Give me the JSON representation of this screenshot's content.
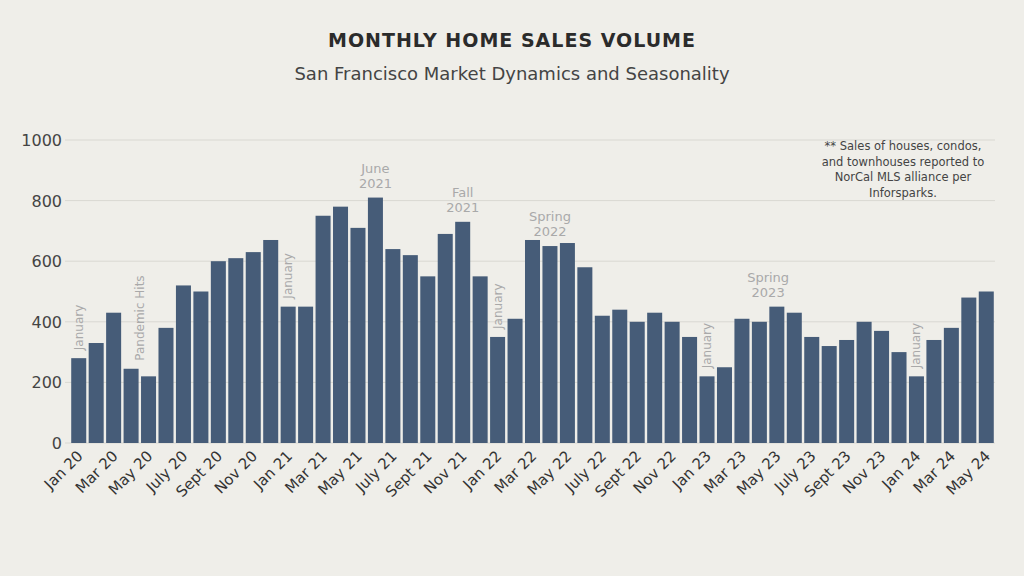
{
  "chart_data": {
    "type": "bar",
    "title": "MONTHLY HOME SALES VOLUME",
    "subtitle": "San Francisco Market Dynamics and Seasonality",
    "categories": [
      "Jan 20",
      null,
      "Mar 20",
      null,
      "May 20",
      null,
      "July 20",
      null,
      "Sept 20",
      null,
      "Nov 20",
      null,
      "Jan 21",
      null,
      "Mar 21",
      null,
      "May 21",
      null,
      "July 21",
      null,
      "Sept 21",
      null,
      "Nov 21",
      null,
      "Jan 22",
      null,
      "Mar 22",
      null,
      "May 22",
      null,
      "July 22",
      null,
      "Sept 22",
      null,
      "Nov 22",
      null,
      "Jan 23",
      null,
      "Mar 23",
      null,
      "May 23",
      null,
      "July 23",
      null,
      "Sept 23",
      null,
      "Nov 23",
      null,
      "Jan 24",
      null,
      "Mar 24",
      null,
      "May 24"
    ],
    "values": [
      280,
      330,
      430,
      245,
      220,
      380,
      520,
      500,
      600,
      610,
      630,
      670,
      450,
      450,
      750,
      780,
      710,
      810,
      640,
      620,
      550,
      690,
      730,
      550,
      350,
      410,
      670,
      650,
      660,
      580,
      420,
      440,
      400,
      430,
      400,
      350,
      220,
      250,
      410,
      400,
      450,
      430,
      350,
      320,
      340,
      400,
      370,
      300,
      220,
      340,
      380,
      480,
      500
    ],
    "color": "#465c78",
    "ylim": [
      0,
      1000
    ],
    "yticks": [
      0,
      200,
      400,
      600,
      800,
      1000
    ],
    "grid": true,
    "annotations": [
      "January",
      "Pandemic Hits",
      "January",
      "June 2021",
      "Fall 2021",
      "January",
      "Spring 2022",
      "January",
      "Spring 2023",
      "January",
      "** Sales of houses, condos, and townhouses reported to NorCal MLS alliance per Inforsparks."
    ]
  }
}
